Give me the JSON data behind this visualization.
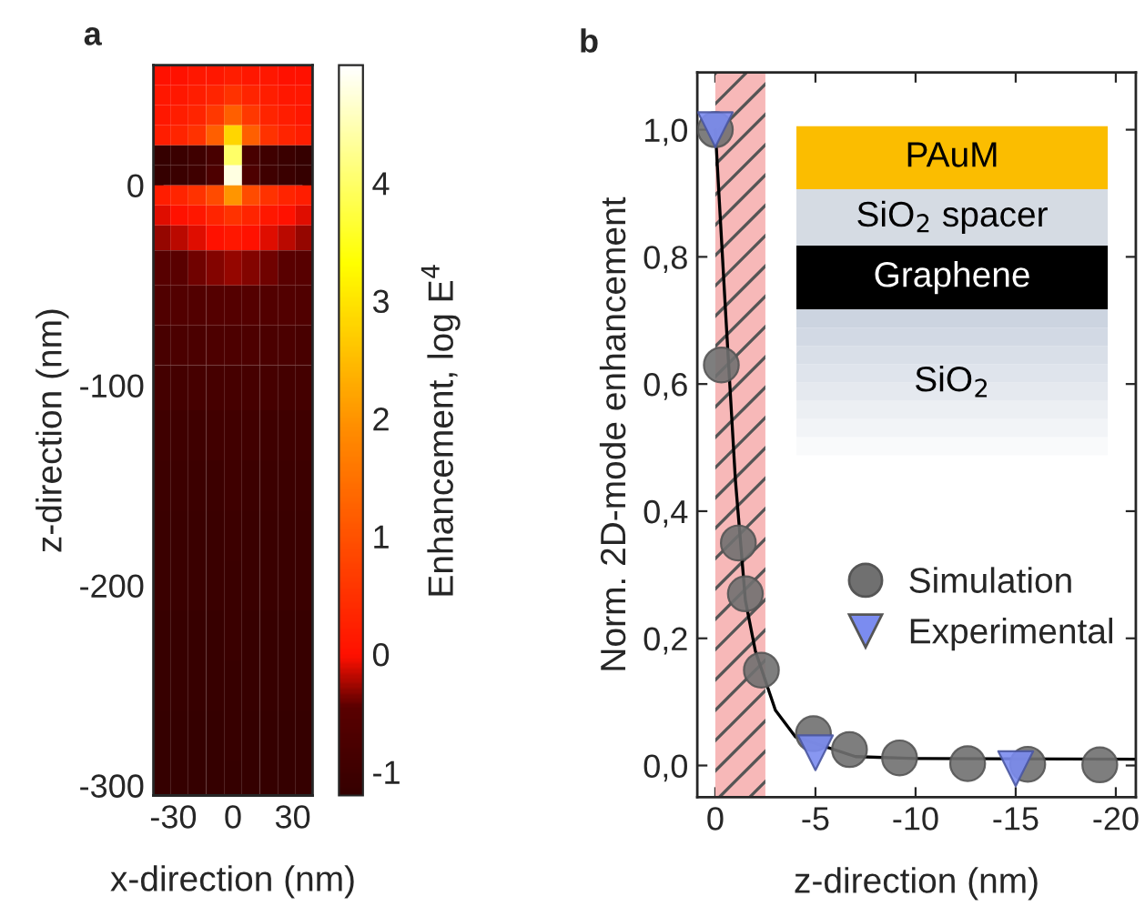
{
  "chart_data": [
    {
      "type": "heatmap",
      "title": "a",
      "xlabel": "x-direction (nm)",
      "ylabel": "z-direction (nm)",
      "clabel": "Enhancement, log E$^{4}$",
      "x": [
        -36,
        -27,
        -18,
        -9,
        0,
        9,
        18,
        27,
        36
      ],
      "y": [
        55,
        45,
        35,
        25,
        15,
        5,
        -5,
        -15,
        -25,
        -40,
        -60,
        -80,
        -100,
        -125,
        -150,
        -175,
        -200,
        -225,
        -250,
        -275,
        -300
      ],
      "cells": [
        [
          0.0,
          0.0,
          0.1,
          0.1,
          0.2,
          0.1,
          0.1,
          0.0,
          0.0
        ],
        [
          0.1,
          0.1,
          0.2,
          0.3,
          0.5,
          0.3,
          0.2,
          0.1,
          0.1
        ],
        [
          0.1,
          0.2,
          0.3,
          0.6,
          1.2,
          0.6,
          0.3,
          0.2,
          0.1
        ],
        [
          0.2,
          0.3,
          0.5,
          1.2,
          2.8,
          1.2,
          0.5,
          0.3,
          0.2
        ],
        [
          -1.2,
          -1.1,
          -1.0,
          -0.8,
          4.0,
          -0.8,
          -1.0,
          -1.1,
          -1.2
        ],
        [
          -1.2,
          -1.1,
          -1.0,
          -0.7,
          4.8,
          -0.7,
          -1.0,
          -1.1,
          -1.2
        ],
        [
          0.2,
          0.3,
          0.5,
          0.9,
          2.0,
          0.9,
          0.5,
          0.3,
          0.2
        ],
        [
          -0.1,
          0.0,
          0.1,
          0.3,
          0.5,
          0.3,
          0.1,
          0.0,
          -0.1
        ],
        [
          -0.3,
          -0.2,
          -0.1,
          0.0,
          0.1,
          0.0,
          -0.1,
          -0.2,
          -0.3
        ],
        [
          -0.5,
          -0.45,
          -0.4,
          -0.35,
          -0.3,
          -0.35,
          -0.4,
          -0.45,
          -0.5
        ],
        [
          -0.65,
          -0.6,
          -0.6,
          -0.55,
          -0.55,
          -0.55,
          -0.6,
          -0.6,
          -0.65
        ],
        [
          -0.8,
          -0.75,
          -0.75,
          -0.7,
          -0.7,
          -0.7,
          -0.75,
          -0.75,
          -0.8
        ],
        [
          -0.9,
          -0.9,
          -0.85,
          -0.85,
          -0.85,
          -0.85,
          -0.85,
          -0.9,
          -0.9
        ],
        [
          -1.0,
          -1.0,
          -1.0,
          -0.95,
          -0.95,
          -0.95,
          -1.0,
          -1.0,
          -1.0
        ],
        [
          -1.05,
          -1.05,
          -1.05,
          -1.05,
          -1.0,
          -1.05,
          -1.05,
          -1.05,
          -1.05
        ],
        [
          -1.1,
          -1.1,
          -1.1,
          -1.1,
          -1.05,
          -1.1,
          -1.1,
          -1.1,
          -1.1
        ],
        [
          -1.1,
          -1.1,
          -1.1,
          -1.1,
          -1.1,
          -1.1,
          -1.1,
          -1.1,
          -1.1
        ],
        [
          -1.15,
          -1.15,
          -1.15,
          -1.15,
          -1.1,
          -1.15,
          -1.15,
          -1.15,
          -1.15
        ],
        [
          -1.15,
          -1.15,
          -1.15,
          -1.15,
          -1.15,
          -1.15,
          -1.15,
          -1.15,
          -1.15
        ],
        [
          -1.2,
          -1.2,
          -1.2,
          -1.2,
          -1.15,
          -1.2,
          -1.2,
          -1.2,
          -1.2
        ],
        [
          -1.2,
          -1.2,
          -1.2,
          -1.2,
          -1.2,
          -1.2,
          -1.2,
          -1.2,
          -1.2
        ]
      ],
      "xlim": [
        -40,
        40
      ],
      "ylim": [
        -305,
        60
      ],
      "xticks": [
        -30,
        0,
        30
      ],
      "yticks": [
        0,
        -100,
        -200,
        -300
      ],
      "clim": [
        -1.2,
        5.0
      ],
      "cticks": [
        -1,
        0,
        1,
        2,
        3,
        4
      ]
    },
    {
      "type": "scatter",
      "title": "b",
      "xlabel": "z-direction (nm)",
      "ylabel": "Norm. 2D-mode enhancement",
      "series": [
        {
          "name": "Simulation",
          "color": "#707070",
          "marker": "circle",
          "x": [
            0,
            -0.3,
            -1.15,
            -1.5,
            -2.3,
            -4.9,
            -6.7,
            -9.2,
            -12.6,
            -15.6,
            -19.2
          ],
          "values": [
            1.0,
            0.63,
            0.35,
            0.27,
            0.15,
            0.05,
            0.025,
            0.012,
            0.003,
            0.002,
            0.001
          ]
        },
        {
          "name": "Experimental",
          "color": "#7b8cf0",
          "marker": "triangle",
          "x": [
            0,
            -5,
            -15
          ],
          "values": [
            1.0,
            0.02,
            -0.005
          ]
        },
        {
          "type": "line",
          "color": "#000000",
          "line_style": "solid",
          "x": [
            0,
            -0.5,
            -1,
            -1.5,
            -2,
            -3,
            -4,
            -7,
            -10,
            -21
          ],
          "values": [
            1.0,
            0.72,
            0.45,
            0.26,
            0.18,
            0.087,
            0.045,
            0.014,
            0.011,
            0.01
          ]
        }
      ],
      "bands": [
        {
          "axis": "x",
          "from": 0,
          "to": -2.5,
          "color": "#f7b8b8"
        }
      ],
      "annotations": [
        "PAuM",
        "SiO$_{2}$ spacer",
        "Graphene",
        "SiO$_{2}$"
      ],
      "xlim": [
        0.9,
        -21
      ],
      "ylim": [
        -0.05,
        1.09
      ],
      "xticks": [
        0,
        -5,
        -10,
        -15,
        -20
      ],
      "yticks": [
        {
          "value": 0.0,
          "label": "0,0"
        },
        {
          "value": 0.2,
          "label": "0,2"
        },
        {
          "value": 0.4,
          "label": "0,4"
        },
        {
          "value": 0.6,
          "label": "0,6"
        },
        {
          "value": 0.8,
          "label": "0,8"
        },
        {
          "value": 1.0,
          "label": "1,0"
        }
      ],
      "legend": "right"
    }
  ]
}
